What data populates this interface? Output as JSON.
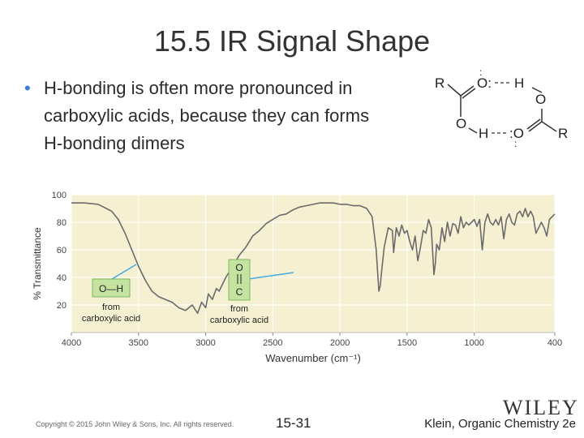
{
  "slide": {
    "title": "15.5 IR Signal Shape",
    "bullet_lines": [
      "H-bonding is often more pronounced in",
      "carboxylic acids, because they can forms",
      "H-bonding dimers"
    ],
    "copyright": "Copyright © 2015 John Wiley & Sons, Inc. All rights reserved.",
    "slide_number": "15-31",
    "publisher_logo": "WILEY",
    "book": "Klein, Organic Chemistry 2e"
  },
  "dimer": {
    "atoms": [
      "R",
      "O:",
      "H",
      "O",
      "O",
      "H",
      ":O",
      "R"
    ],
    "lone_pair_marks": [
      ":",
      ":"
    ]
  },
  "colors": {
    "background": "#ffffff",
    "bullet": "#3a7bd5",
    "plot_bg": "#f6f0d2",
    "spectrum": "#6b6b6b",
    "callout_line": "#45a8df",
    "callout_box": "#c5e3a0"
  },
  "chart_data": {
    "type": "line",
    "xlabel": "Wavenumber (cm⁻¹)",
    "ylabel": "% Transmittance",
    "xlim": [
      4000,
      400
    ],
    "ylim": [
      0,
      100
    ],
    "x_ticks": [
      4000,
      3500,
      3000,
      2500,
      2000,
      1500,
      1000,
      400
    ],
    "y_ticks": [
      20,
      40,
      60,
      80,
      100
    ],
    "grid": true,
    "series": [
      {
        "x": [
          4000,
          3900,
          3800,
          3700,
          3650,
          3600,
          3550,
          3500,
          3450,
          3400,
          3350,
          3300,
          3250,
          3200,
          3150,
          3100,
          3060,
          3030,
          3000,
          2980,
          2950,
          2920,
          2900,
          2850,
          2800,
          2750,
          2700,
          2650,
          2600,
          2550,
          2500,
          2450,
          2400,
          2350,
          2300,
          2250,
          2200,
          2150,
          2100,
          2050,
          2000,
          1950,
          1900,
          1850,
          1800,
          1760,
          1730,
          1710,
          1700,
          1690,
          1670,
          1640,
          1610,
          1600,
          1580,
          1560,
          1540,
          1520,
          1500,
          1480,
          1460,
          1440,
          1420,
          1400,
          1380,
          1360,
          1340,
          1320,
          1300,
          1290,
          1280,
          1260,
          1240,
          1220,
          1200,
          1180,
          1160,
          1140,
          1120,
          1100,
          1080,
          1060,
          1040,
          1020,
          1000,
          980,
          960,
          940,
          920,
          900,
          880,
          860,
          840,
          820,
          800,
          780,
          760,
          740,
          720,
          700,
          680,
          660,
          640,
          620,
          600,
          580,
          560,
          540,
          520,
          500,
          480,
          460,
          440,
          420,
          400
        ],
        "y": [
          94,
          94,
          93,
          88,
          82,
          72,
          60,
          48,
          38,
          30,
          26,
          24,
          22,
          18,
          16,
          20,
          14,
          22,
          18,
          28,
          24,
          32,
          30,
          40,
          48,
          56,
          62,
          70,
          74,
          79,
          82,
          85,
          86,
          89,
          91,
          92,
          93,
          94,
          94,
          94,
          93,
          93,
          92,
          92,
          90,
          84,
          60,
          30,
          34,
          44,
          62,
          76,
          74,
          58,
          76,
          70,
          78,
          72,
          74,
          66,
          60,
          70,
          52,
          62,
          74,
          72,
          82,
          76,
          42,
          50,
          64,
          60,
          76,
          66,
          80,
          70,
          79,
          78,
          72,
          84,
          76,
          80,
          78,
          80,
          82,
          77,
          82,
          60,
          80,
          86,
          80,
          78,
          82,
          78,
          84,
          68,
          82,
          86,
          80,
          78,
          86,
          88,
          84,
          90,
          84,
          88,
          84,
          72,
          76,
          80,
          76,
          70,
          82,
          84,
          86
        ]
      }
    ],
    "annotations": [
      {
        "lines": [
          "O—H",
          "from",
          "carboxylic acid"
        ]
      },
      {
        "lines": [
          "O",
          "C",
          "from",
          "carboxylic acid"
        ]
      }
    ]
  }
}
